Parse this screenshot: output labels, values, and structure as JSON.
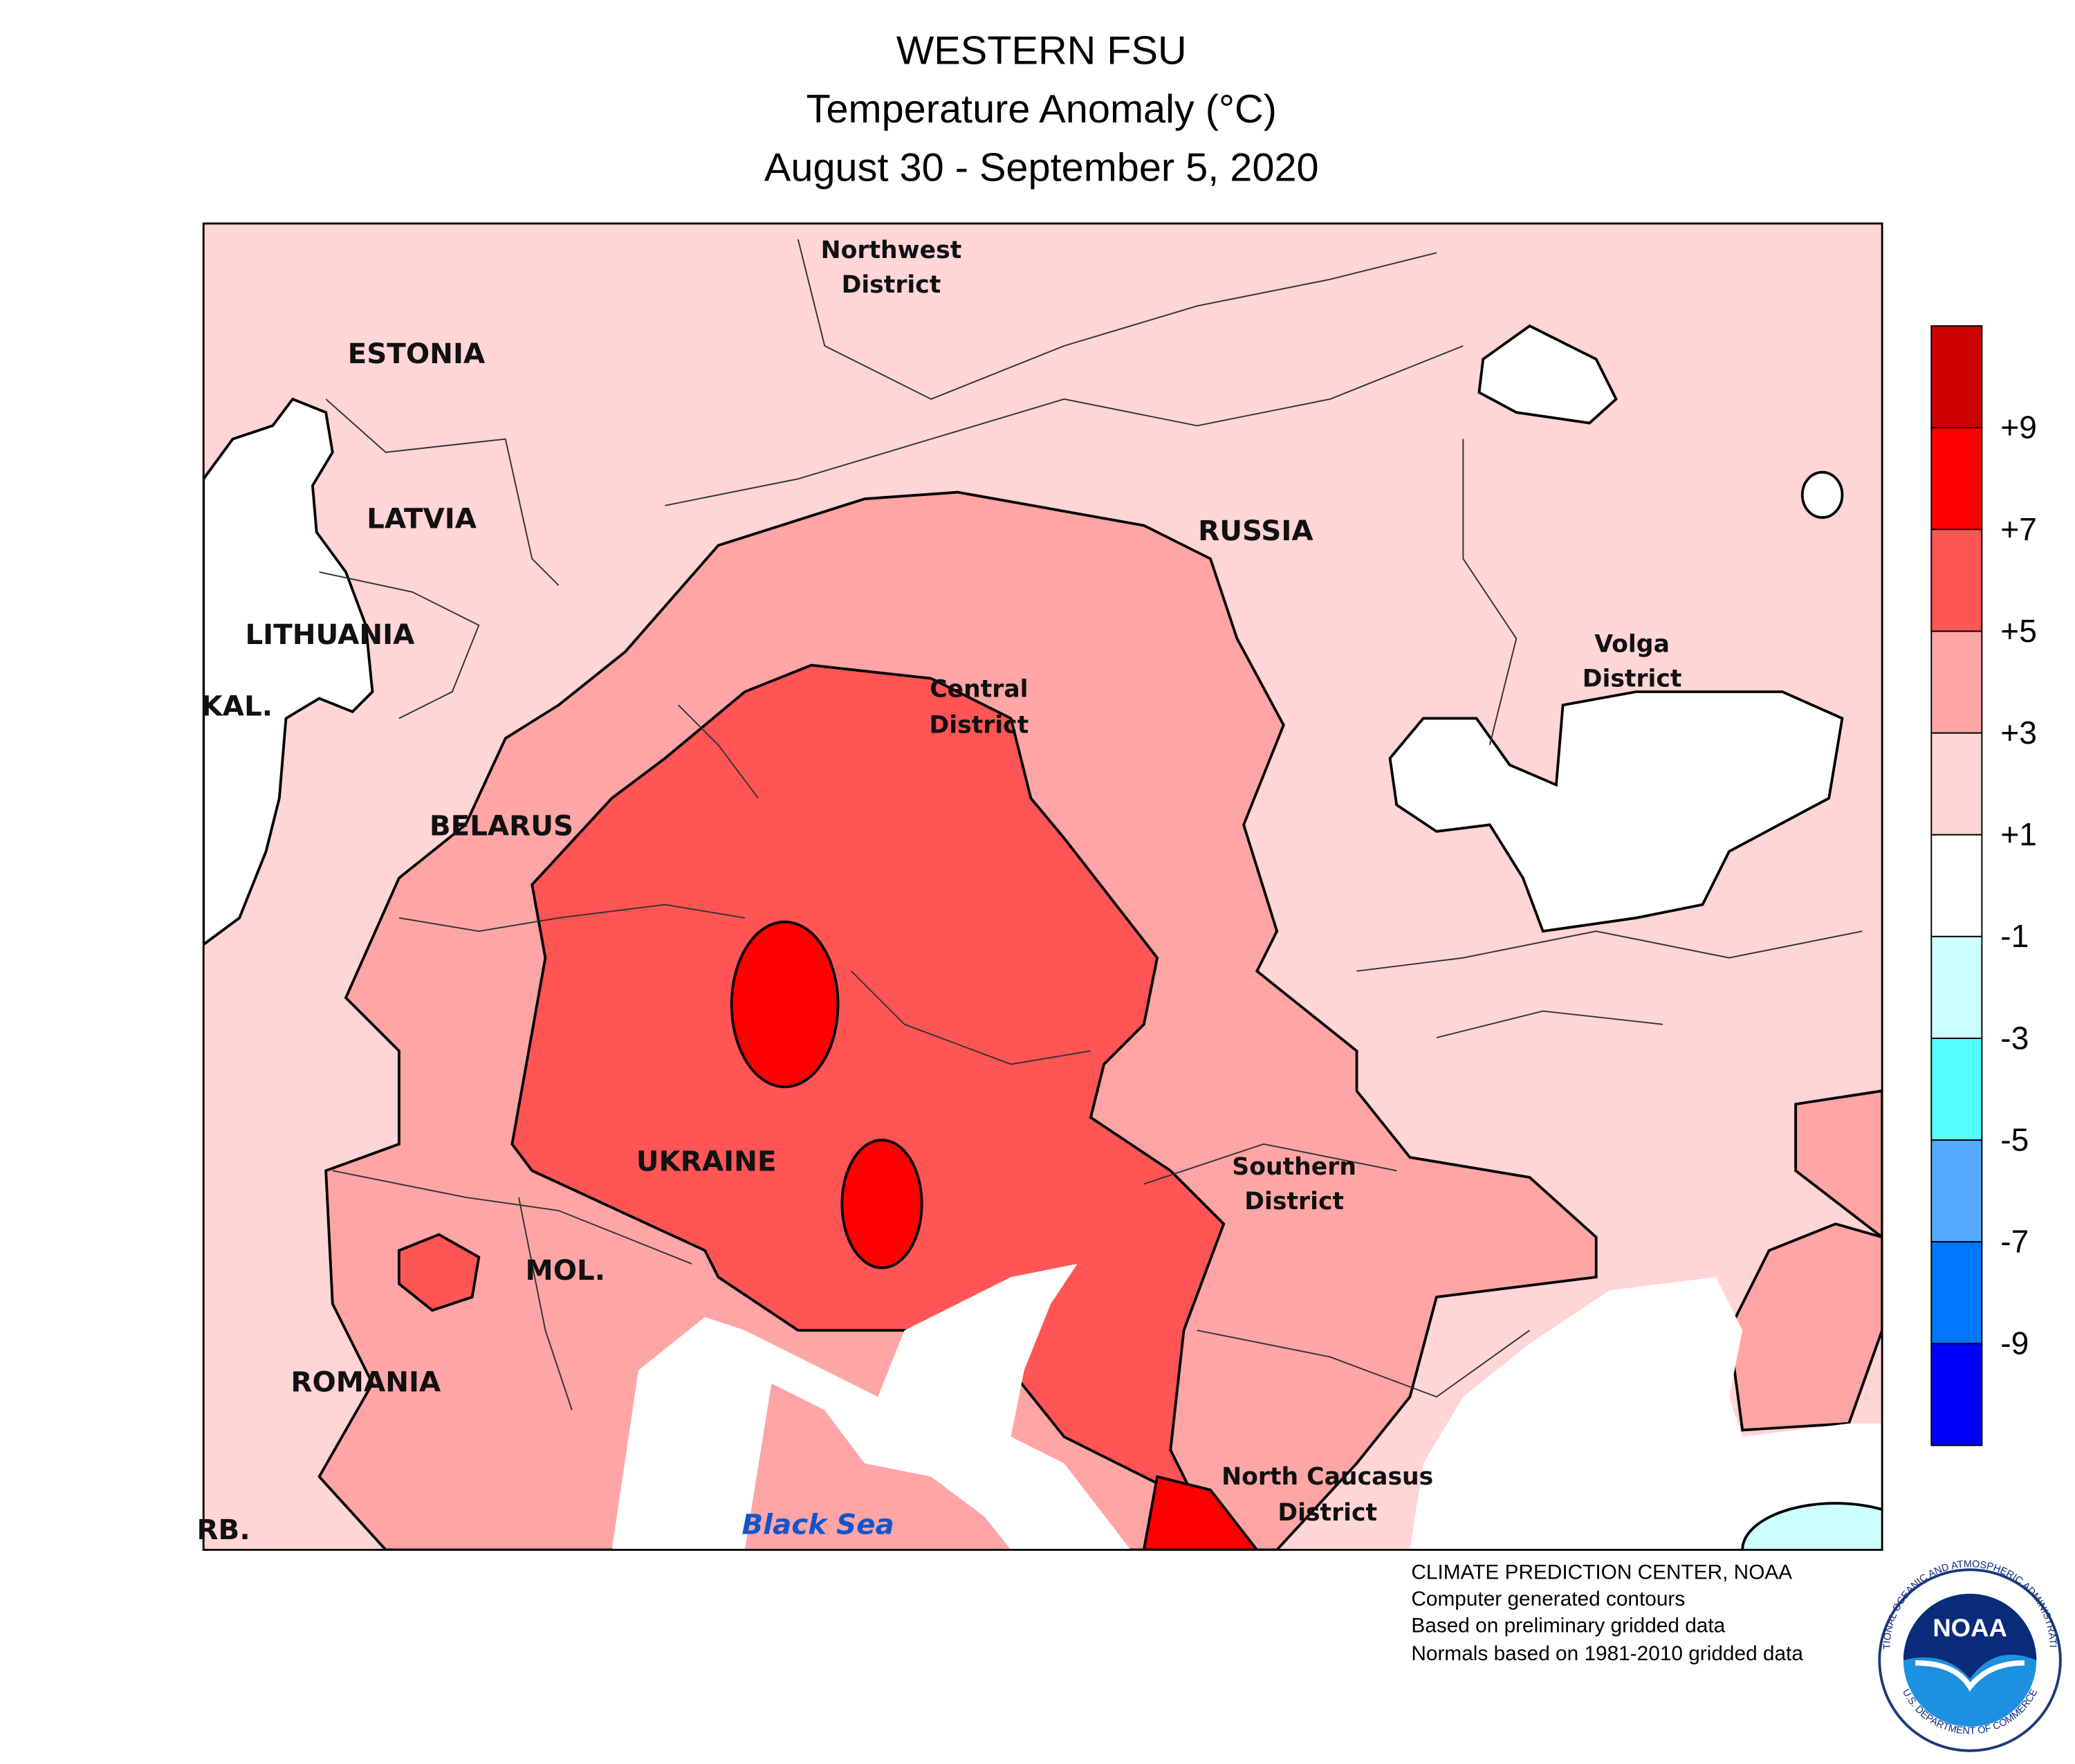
{
  "title": [
    "WESTERN FSU",
    "Temperature Anomaly (°C)",
    "August 30 - September 5, 2020"
  ],
  "map_labels": [
    [
      "Northwest",
      "District"
    ],
    [
      "ESTONIA"
    ],
    [
      "LATVIA"
    ],
    [
      "LITHUANIA"
    ],
    [
      "KAL."
    ],
    [
      "BELARUS"
    ],
    [
      "RUSSIA"
    ],
    [
      "Central",
      "District"
    ],
    [
      "Volga",
      "District"
    ],
    [
      "UKRAINE"
    ],
    [
      "Southern",
      "District"
    ],
    [
      "MOL."
    ],
    [
      "ROMANIA"
    ],
    [
      "North Caucasus",
      "District"
    ],
    [
      "Black Sea"
    ],
    [
      "RB."
    ]
  ],
  "legend": {
    "colors": [
      "#cc0000",
      "#ff0000",
      "#ff5555",
      "#ffa5a5",
      "#ffd5d5",
      "#ffffff",
      "#ccffff",
      "#55ffff",
      "#55aaff",
      "#0077ff",
      "#0000ff"
    ],
    "ticks": [
      "+9",
      "+7",
      "+5",
      "+3",
      "+1",
      "-1",
      "-3",
      "-5",
      "-7",
      "-9"
    ]
  },
  "credits": [
    "CLIMATE PREDICTION CENTER, NOAA",
    "Computer generated contours",
    "Based on preliminary gridded data",
    "Normals based on 1981-2010 gridded data"
  ],
  "logo": {
    "text": "NOAA",
    "ring_top": "NATIONAL OCEANIC AND ATMOSPHERIC ADMINISTRATION",
    "ring_bottom": "U.S. DEPARTMENT OF COMMERCE"
  }
}
